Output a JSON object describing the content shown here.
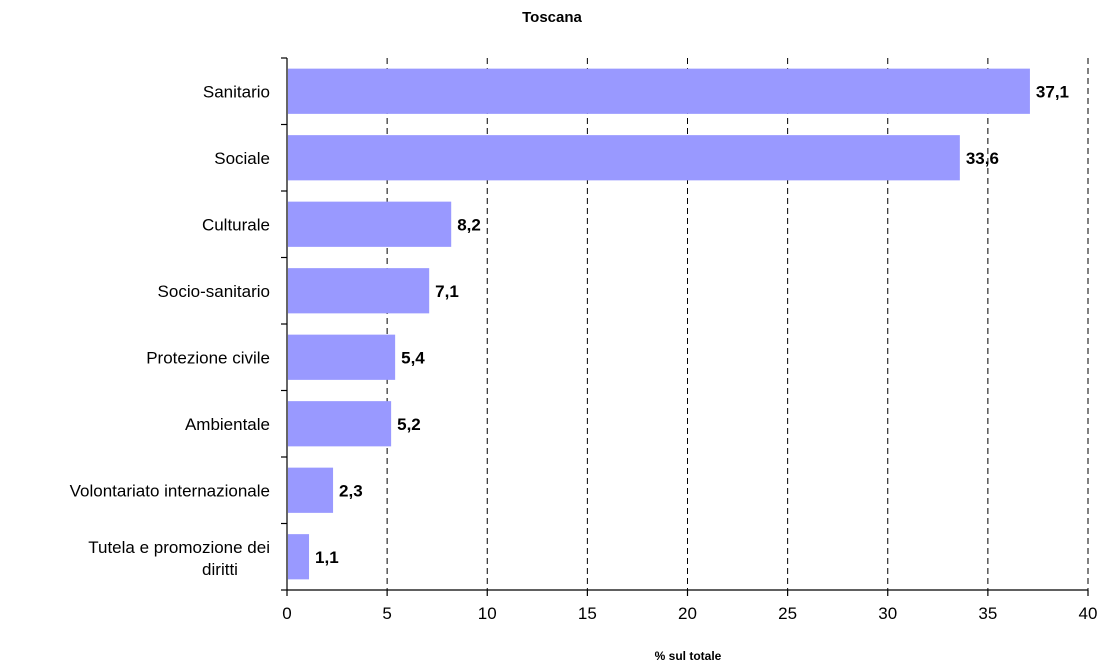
{
  "chart_data": {
    "type": "bar",
    "orientation": "horizontal",
    "title": "Toscana",
    "xlabel": "% sul totale",
    "ylabel": "",
    "categories": [
      "Sanitario",
      "Sociale",
      "Culturale",
      "Socio-sanitario",
      "Protezione civile",
      "Ambientale",
      "Volontariato internazionale",
      "Tutela e promozione dei diritti"
    ],
    "values": [
      37.1,
      33.6,
      8.2,
      7.1,
      5.4,
      5.2,
      2.3,
      1.1
    ],
    "data_labels": [
      "37,1",
      "33,6",
      "8,2",
      "7,1",
      "5,4",
      "5,2",
      "2,3",
      "1,1"
    ],
    "xlim": [
      0,
      40
    ],
    "x_ticks": [
      0,
      5,
      10,
      15,
      20,
      25,
      30,
      35,
      40
    ],
    "grid": "vertical-dashed",
    "legend": "none",
    "bar_color": "#9999ff"
  }
}
